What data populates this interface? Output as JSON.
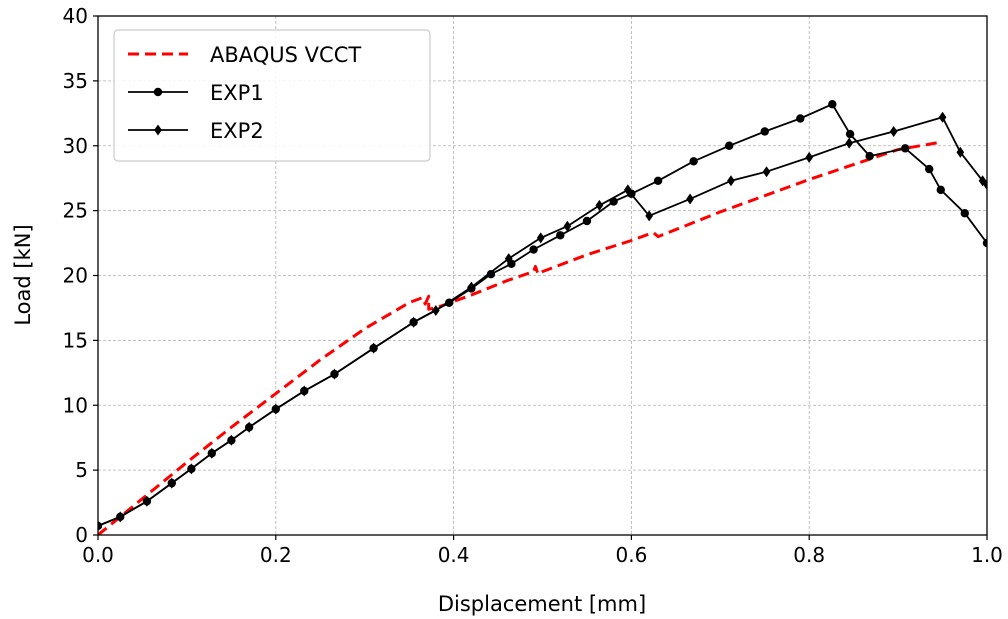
{
  "chart_data": {
    "type": "line",
    "title": "",
    "xlabel": "Displacement [mm]",
    "ylabel": "Load [kN]",
    "xlim": [
      0,
      1.0
    ],
    "ylim": [
      0,
      40
    ],
    "x_ticks": [
      "0.0",
      "0.2",
      "0.4",
      "0.6",
      "0.8",
      "1.0"
    ],
    "y_ticks": [
      "0",
      "5",
      "10",
      "15",
      "20",
      "25",
      "30",
      "35",
      "40"
    ],
    "grid": true,
    "legend_position": "top-left",
    "series": [
      {
        "name": "ABAQUS VCCT",
        "color": "#ff0000",
        "style": "dashed",
        "marker": "none",
        "x": [
          0.0,
          0.05,
          0.1,
          0.15,
          0.2,
          0.25,
          0.3,
          0.35,
          0.365,
          0.368,
          0.372,
          0.372,
          0.38,
          0.42,
          0.46,
          0.49,
          0.492,
          0.495,
          0.5,
          0.55,
          0.6,
          0.62,
          0.625,
          0.63,
          0.7,
          0.8,
          0.9,
          0.95
        ],
        "y": [
          0.0,
          2.8,
          5.6,
          8.3,
          10.9,
          13.5,
          15.9,
          17.9,
          18.3,
          17.8,
          18.4,
          17.4,
          17.5,
          18.5,
          19.6,
          20.3,
          20.7,
          20.1,
          20.3,
          21.6,
          22.7,
          23.2,
          23.3,
          23.0,
          24.9,
          27.4,
          29.7,
          30.3
        ]
      },
      {
        "name": "EXP1",
        "color": "#000000",
        "style": "solid",
        "marker": "circle",
        "x": [
          0.0,
          0.025,
          0.055,
          0.083,
          0.105,
          0.128,
          0.15,
          0.17,
          0.2,
          0.232,
          0.266,
          0.31,
          0.355,
          0.395,
          0.42,
          0.442,
          0.465,
          0.49,
          0.52,
          0.55,
          0.58,
          0.6,
          0.63,
          0.67,
          0.71,
          0.75,
          0.79,
          0.826,
          0.846,
          0.868,
          0.908,
          0.935,
          0.948,
          0.975,
          1.0
        ],
        "y": [
          0.7,
          1.4,
          2.6,
          4.0,
          5.1,
          6.3,
          7.3,
          8.3,
          9.7,
          11.1,
          12.4,
          14.4,
          16.4,
          17.9,
          19.0,
          20.1,
          20.9,
          22.0,
          23.1,
          24.2,
          25.7,
          26.3,
          27.3,
          28.8,
          30.0,
          31.1,
          32.1,
          33.2,
          30.9,
          29.2,
          29.8,
          28.2,
          26.6,
          24.8,
          22.5
        ]
      },
      {
        "name": "EXP2",
        "color": "#000000",
        "style": "solid",
        "marker": "diamond",
        "x": [
          0.0,
          0.025,
          0.055,
          0.083,
          0.105,
          0.128,
          0.15,
          0.17,
          0.2,
          0.232,
          0.266,
          0.31,
          0.355,
          0.38,
          0.42,
          0.462,
          0.498,
          0.528,
          0.564,
          0.596,
          0.62,
          0.666,
          0.712,
          0.752,
          0.8,
          0.845,
          0.895,
          0.95,
          0.97,
          0.995,
          1.0
        ],
        "y": [
          0.7,
          1.4,
          2.6,
          4.0,
          5.1,
          6.3,
          7.3,
          8.3,
          9.7,
          11.1,
          12.4,
          14.4,
          16.4,
          17.3,
          19.1,
          21.3,
          22.9,
          23.8,
          25.4,
          26.6,
          24.6,
          25.9,
          27.3,
          28.0,
          29.1,
          30.2,
          31.1,
          32.2,
          29.5,
          27.3,
          27.0
        ]
      }
    ]
  }
}
